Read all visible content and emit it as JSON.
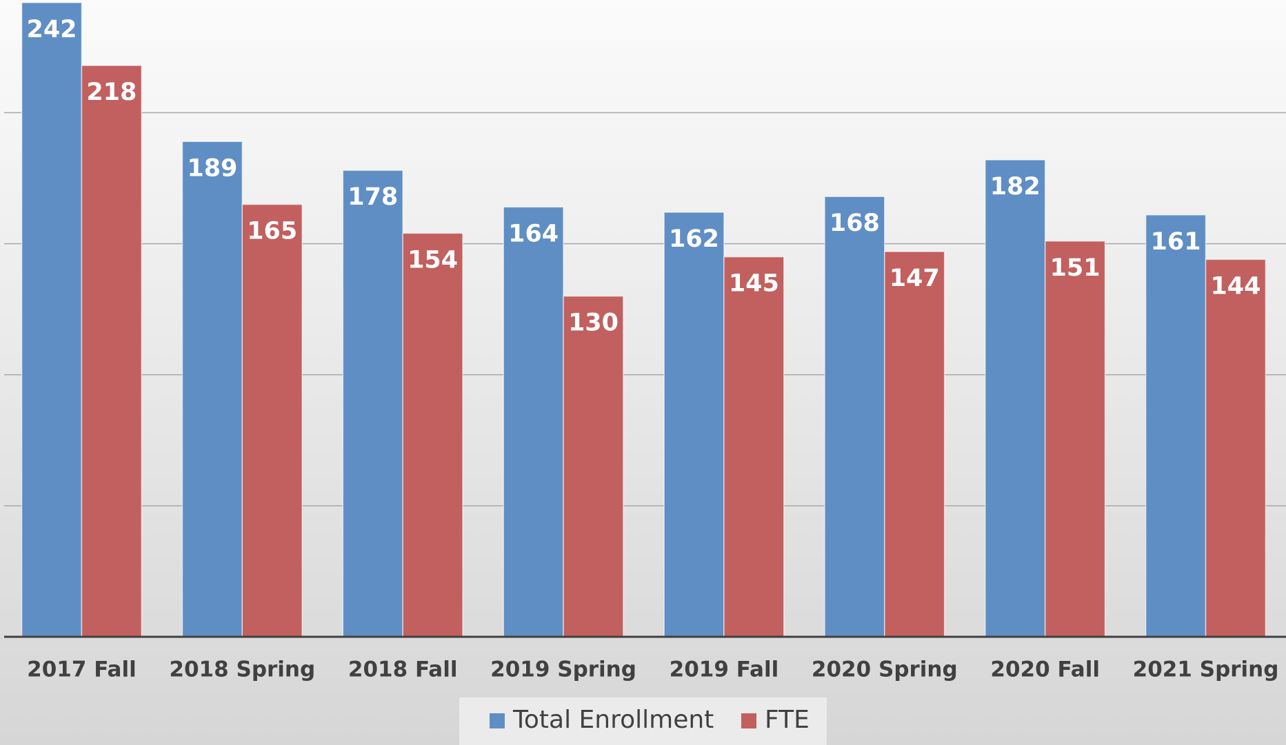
{
  "chart_data": {
    "type": "bar",
    "categories": [
      "2017 Fall",
      "2018 Spring",
      "2018 Fall",
      "2019 Spring",
      "2019 Fall",
      "2020 Spring",
      "2020 Fall",
      "2021 Spring"
    ],
    "series": [
      {
        "name": "Total Enrollment",
        "color": "#5f8ec4",
        "values": [
          242,
          189,
          178,
          164,
          162,
          168,
          182,
          161
        ]
      },
      {
        "name": "FTE",
        "color": "#c1605e",
        "values": [
          218,
          165,
          154,
          130,
          145,
          147,
          151,
          144
        ]
      }
    ],
    "ylim": [
      0,
      243
    ],
    "yticks": [
      0,
      50,
      100,
      150,
      200
    ],
    "grid": true,
    "legend": "bottom"
  }
}
